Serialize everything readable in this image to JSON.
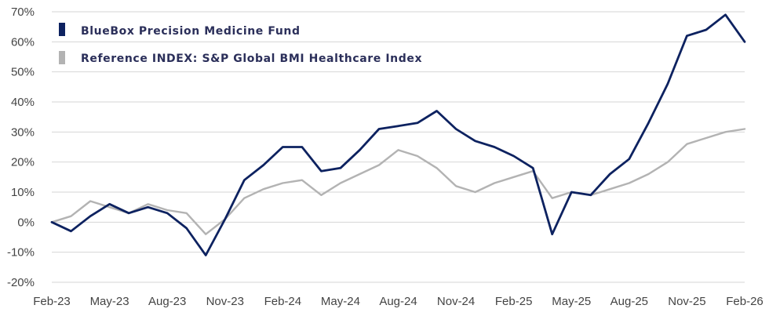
{
  "chart_data": {
    "type": "line",
    "title": "",
    "xlabel": "",
    "ylabel": "",
    "ylim": [
      -20,
      70
    ],
    "y_ticks": [
      -20,
      -10,
      0,
      10,
      20,
      30,
      40,
      50,
      60,
      70
    ],
    "y_tick_labels": [
      "-20%",
      "-10%",
      "0%",
      "10%",
      "20%",
      "30%",
      "40%",
      "50%",
      "60%",
      "70%"
    ],
    "x_ticks": [
      "Feb-23",
      "May-23",
      "Aug-23",
      "Nov-23",
      "Feb-24",
      "May-24",
      "Aug-24",
      "Nov-24",
      "Feb-25",
      "May-25",
      "Aug-25",
      "Nov-25",
      "Feb-26"
    ],
    "grid": "horizontal",
    "legend_position": "top-left",
    "series": [
      {
        "name": "BlueBox Precision Medicine Fund",
        "color": "#0d2260",
        "points": [
          [
            "Feb-23",
            0
          ],
          [
            "Mar-23",
            -3
          ],
          [
            "Apr-23",
            2
          ],
          [
            "May-23",
            6
          ],
          [
            "Jun-23",
            3
          ],
          [
            "Jul-23",
            5
          ],
          [
            "Aug-23",
            3
          ],
          [
            "Sep-23",
            -2
          ],
          [
            "Oct-23",
            -11
          ],
          [
            "Nov-23",
            1
          ],
          [
            "Dec-23",
            14
          ],
          [
            "Jan-24",
            19
          ],
          [
            "Feb-24",
            25
          ],
          [
            "Mar-24",
            25
          ],
          [
            "Apr-24",
            17
          ],
          [
            "May-24",
            18
          ],
          [
            "Jun-24",
            24
          ],
          [
            "Jul-24",
            31
          ],
          [
            "Aug-24",
            32
          ],
          [
            "Sep-24",
            33
          ],
          [
            "Oct-24",
            37
          ],
          [
            "Nov-24",
            31
          ],
          [
            "Dec-24",
            27
          ],
          [
            "Jan-25",
            25
          ],
          [
            "Feb-25",
            22
          ],
          [
            "Mar-25",
            18
          ],
          [
            "Apr-25",
            -4
          ],
          [
            "May-25",
            10
          ],
          [
            "Jun-25",
            9
          ],
          [
            "Jul-25",
            16
          ],
          [
            "Aug-25",
            21
          ],
          [
            "Sep-25",
            33
          ],
          [
            "Oct-25",
            46
          ],
          [
            "Nov-25",
            62
          ],
          [
            "Dec-25",
            64
          ],
          [
            "Jan-26",
            69
          ],
          [
            "Feb-26",
            60
          ]
        ]
      },
      {
        "name": "Reference INDEX: S&P Global BMI Healthcare Index",
        "color": "#b3b3b3",
        "points": [
          [
            "Feb-23",
            0
          ],
          [
            "Mar-23",
            2
          ],
          [
            "Apr-23",
            7
          ],
          [
            "May-23",
            5
          ],
          [
            "Jun-23",
            3
          ],
          [
            "Jul-23",
            6
          ],
          [
            "Aug-23",
            4
          ],
          [
            "Sep-23",
            3
          ],
          [
            "Oct-23",
            -4
          ],
          [
            "Nov-23",
            1
          ],
          [
            "Dec-23",
            8
          ],
          [
            "Jan-24",
            11
          ],
          [
            "Feb-24",
            13
          ],
          [
            "Mar-24",
            14
          ],
          [
            "Apr-24",
            9
          ],
          [
            "May-24",
            13
          ],
          [
            "Jun-24",
            16
          ],
          [
            "Jul-24",
            19
          ],
          [
            "Aug-24",
            24
          ],
          [
            "Sep-24",
            22
          ],
          [
            "Oct-24",
            18
          ],
          [
            "Nov-24",
            12
          ],
          [
            "Dec-24",
            10
          ],
          [
            "Jan-25",
            13
          ],
          [
            "Feb-25",
            15
          ],
          [
            "Mar-25",
            17
          ],
          [
            "Apr-25",
            8
          ],
          [
            "May-25",
            10
          ],
          [
            "Jun-25",
            9
          ],
          [
            "Jul-25",
            11
          ],
          [
            "Aug-25",
            13
          ],
          [
            "Sep-25",
            16
          ],
          [
            "Oct-25",
            20
          ],
          [
            "Nov-25",
            26
          ],
          [
            "Dec-25",
            28
          ],
          [
            "Jan-26",
            30
          ],
          [
            "Feb-26",
            31
          ]
        ]
      }
    ]
  }
}
